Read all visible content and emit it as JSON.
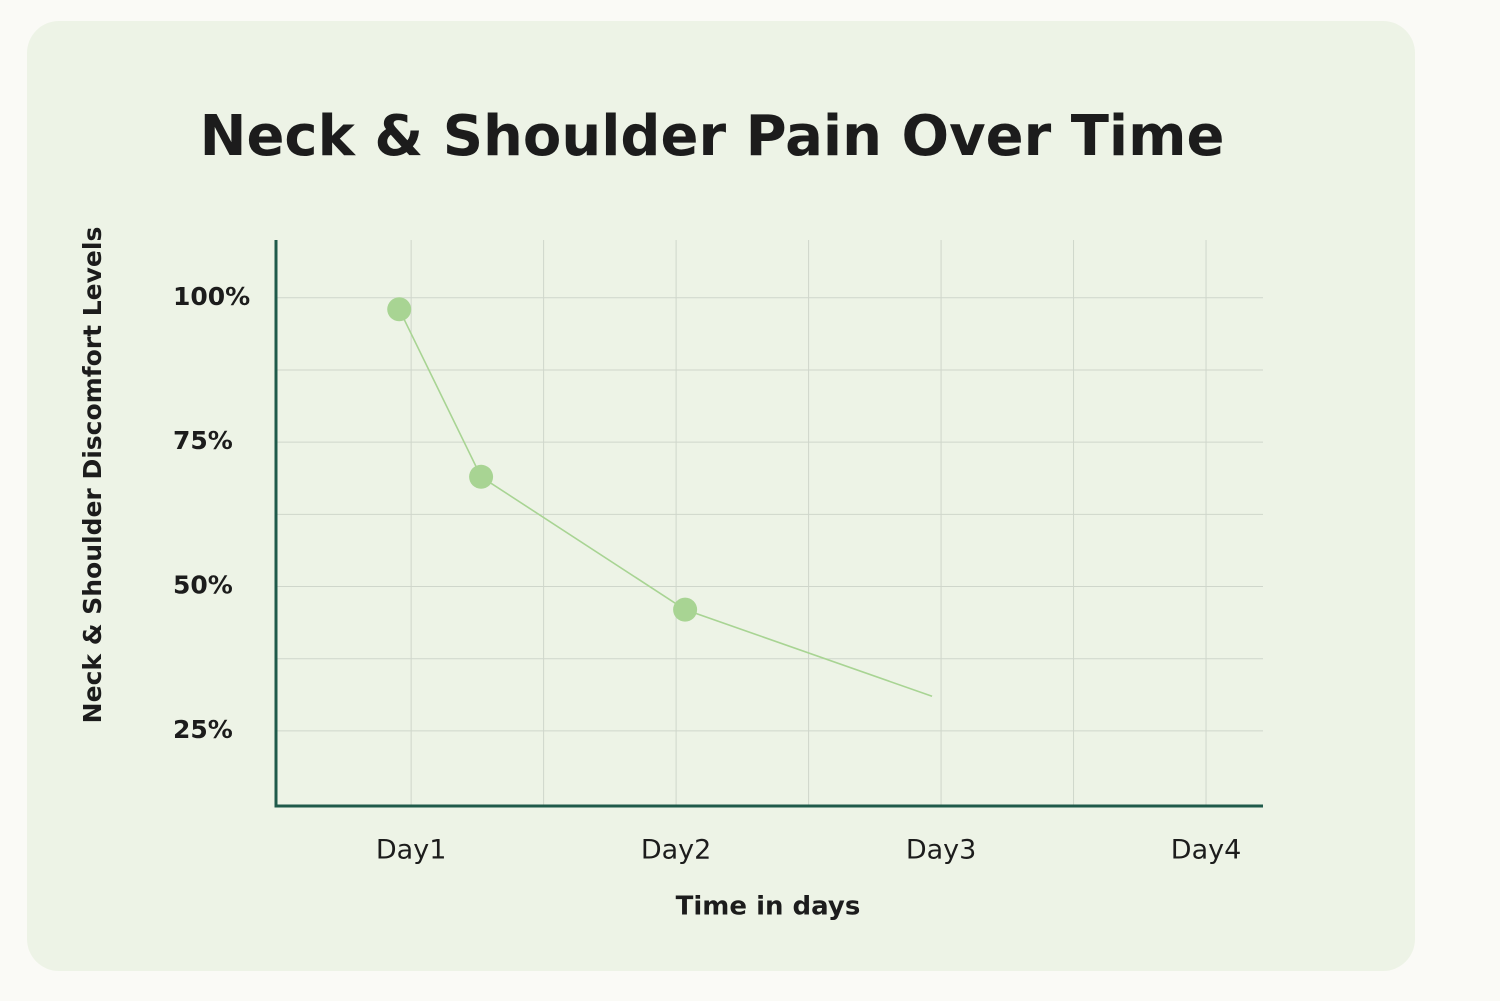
{
  "chart_data": {
    "type": "line",
    "title": "Neck & Shoulder Pain Over Time",
    "x_label": "Time in days",
    "y_label": "Neck & Shoulder Discomfort Levels",
    "x": [
      0.955,
      1.264,
      2.034,
      2.966
    ],
    "series": [
      {
        "color": "#a8d493",
        "values": [
          98,
          69,
          46,
          31
        ],
        "markers": [
          true,
          true,
          true,
          false
        ]
      }
    ],
    "xlim": [
      0.49,
      4.215
    ],
    "xticks": [
      {
        "value": 1,
        "label": "Day1"
      },
      {
        "value": 2,
        "label": "Day2"
      },
      {
        "value": 3,
        "label": "Day3"
      },
      {
        "value": 4,
        "label": "Day4"
      }
    ],
    "xgrid": [
      1,
      1.5,
      2,
      2.5,
      3,
      3.5,
      4
    ],
    "ylim": [
      12,
      110
    ],
    "yticks": [
      {
        "value": 25,
        "label": "25%"
      },
      {
        "value": 50,
        "label": "50%"
      },
      {
        "value": 75,
        "label": "75%"
      },
      {
        "value": 100,
        "label": "100%"
      }
    ],
    "ygrid": [
      25,
      37.5,
      50,
      62.5,
      75,
      87.5,
      100
    ],
    "grid": true
  }
}
